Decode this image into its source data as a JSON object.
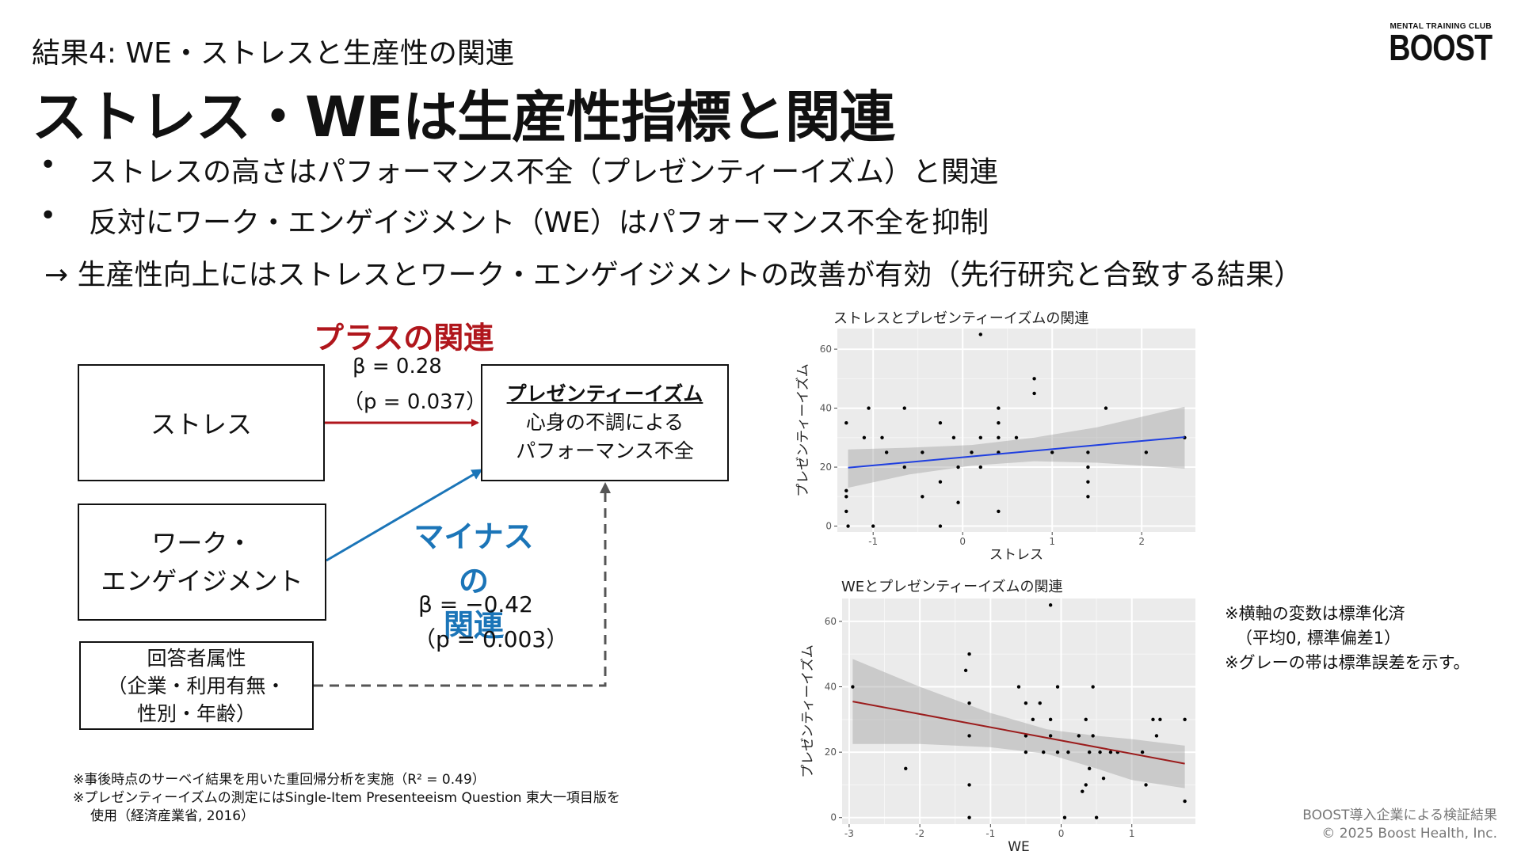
{
  "header": {
    "subtitle": "結果4: WE・ストレスと生産性の関連",
    "title": "ストレス・WEは生産性指標と関連",
    "logo_small": "MENTAL TRAINING CLUB",
    "logo_big": "BOOST"
  },
  "bullets": [
    {
      "mark": "•",
      "text": "ストレスの高さはパフォーマンス不全（プレゼンティーイズム）と関連"
    },
    {
      "mark": "•",
      "text": "反対にワーク・エンゲイジメント（WE）はパフォーマンス不全を抑制"
    }
  ],
  "conclusion": "→ 生産性向上にはストレスとワーク・エンゲイジメントの改善が有効（先行研究と合致する結果）",
  "diagram": {
    "stress_box": "ストレス",
    "we_box": [
      "ワーク・",
      "エンゲイジメント"
    ],
    "attr_box": [
      "回答者属性",
      "（企業・利用有無・",
      "性別・年齢）"
    ],
    "pres_box": {
      "title": "プレゼンティーイズム",
      "line1": "心身の不調による",
      "line2": "パフォーマンス不全"
    },
    "plus": {
      "label": "プラスの関連",
      "beta": "β = 0.28",
      "p": "（p = 0.037）"
    },
    "minus": {
      "label1": "マイナスの",
      "label2": "関連",
      "beta": "β = −0.42",
      "p": "（p = 0.003）"
    },
    "colors": {
      "plus": "#b0161c",
      "minus": "#1b75b8",
      "control": "#555555"
    }
  },
  "chart_data": [
    {
      "type": "scatter",
      "title": "ストレスとプレゼンティーイズムの関連",
      "xlabel": "ストレス",
      "ylabel": "プレゼンティーイズム",
      "xlim": [
        -1.4,
        2.6
      ],
      "ylim": [
        -2,
        67
      ],
      "xticks": [
        -1,
        0,
        1,
        2
      ],
      "yticks": [
        0,
        20,
        40,
        60
      ],
      "fit_color": "#1f3fe0",
      "fit": {
        "x": [
          -1.28,
          2.48
        ],
        "y": [
          19.8,
          30.2
        ]
      },
      "band": {
        "x": [
          -1.28,
          -0.6,
          0.1,
          0.8,
          1.5,
          2.48
        ],
        "upper": [
          26.0,
          26.6,
          27.5,
          30.0,
          33.5,
          40.5
        ],
        "lower": [
          13.0,
          17.5,
          20.5,
          22.0,
          21.5,
          19.5
        ]
      },
      "points": [
        [
          -1.3,
          35
        ],
        [
          -1.3,
          10
        ],
        [
          -1.3,
          12
        ],
        [
          -1.3,
          5
        ],
        [
          -1.28,
          0
        ],
        [
          -1.1,
          30
        ],
        [
          -1.05,
          40
        ],
        [
          -1.0,
          0
        ],
        [
          -0.9,
          30
        ],
        [
          -0.85,
          25
        ],
        [
          -0.65,
          40
        ],
        [
          -0.65,
          20
        ],
        [
          -0.45,
          25
        ],
        [
          -0.45,
          10
        ],
        [
          -0.25,
          35
        ],
        [
          -0.25,
          15
        ],
        [
          -0.25,
          0
        ],
        [
          -0.1,
          30
        ],
        [
          -0.05,
          20
        ],
        [
          -0.05,
          8
        ],
        [
          0.1,
          25
        ],
        [
          0.2,
          65
        ],
        [
          0.2,
          30
        ],
        [
          0.2,
          20
        ],
        [
          0.4,
          40
        ],
        [
          0.4,
          35
        ],
        [
          0.4,
          30
        ],
        [
          0.4,
          25
        ],
        [
          0.4,
          5
        ],
        [
          0.6,
          30
        ],
        [
          0.8,
          50
        ],
        [
          0.8,
          45
        ],
        [
          1.0,
          25
        ],
        [
          1.4,
          25
        ],
        [
          1.4,
          20
        ],
        [
          1.4,
          15
        ],
        [
          1.4,
          10
        ],
        [
          1.6,
          40
        ],
        [
          2.05,
          25
        ],
        [
          2.48,
          30
        ]
      ]
    },
    {
      "type": "scatter",
      "title": "WEとプレゼンティーイズムの関連",
      "xlabel": "WE",
      "ylabel": "プレゼンティーイズム",
      "xlim": [
        -3.1,
        1.9
      ],
      "ylim": [
        -2,
        67
      ],
      "xticks": [
        -3,
        -2,
        -1,
        0,
        1
      ],
      "yticks": [
        0,
        20,
        40,
        60
      ],
      "fit_color": "#9b1c1c",
      "fit": {
        "x": [
          -2.95,
          1.75
        ],
        "y": [
          35.5,
          16.5
        ]
      },
      "band": {
        "x": [
          -2.95,
          -2.0,
          -1.0,
          -0.2,
          0.5,
          1.0,
          1.75
        ],
        "upper": [
          48.5,
          40.0,
          32.0,
          27.0,
          25.0,
          24.0,
          22.0
        ],
        "lower": [
          22.5,
          22.5,
          21.5,
          19.5,
          15.0,
          11.5,
          9.0
        ]
      },
      "points": [
        [
          -2.95,
          40
        ],
        [
          -2.2,
          15
        ],
        [
          -1.35,
          45
        ],
        [
          -1.3,
          50
        ],
        [
          -1.3,
          35
        ],
        [
          -1.3,
          25
        ],
        [
          -1.3,
          10
        ],
        [
          -1.3,
          0
        ],
        [
          -0.6,
          40
        ],
        [
          -0.5,
          35
        ],
        [
          -0.5,
          25
        ],
        [
          -0.5,
          20
        ],
        [
          -0.4,
          30
        ],
        [
          -0.3,
          35
        ],
        [
          -0.25,
          20
        ],
        [
          -0.15,
          65
        ],
        [
          -0.15,
          30
        ],
        [
          -0.15,
          25
        ],
        [
          -0.05,
          40
        ],
        [
          -0.05,
          20
        ],
        [
          0.05,
          0
        ],
        [
          0.1,
          20
        ],
        [
          0.25,
          25
        ],
        [
          0.3,
          8
        ],
        [
          0.35,
          10
        ],
        [
          0.35,
          30
        ],
        [
          0.4,
          20
        ],
        [
          0.4,
          15
        ],
        [
          0.45,
          40
        ],
        [
          0.45,
          25
        ],
        [
          0.5,
          0
        ],
        [
          0.55,
          20
        ],
        [
          0.6,
          12
        ],
        [
          0.7,
          20
        ],
        [
          0.8,
          20
        ],
        [
          1.15,
          20
        ],
        [
          1.2,
          10
        ],
        [
          1.3,
          30
        ],
        [
          1.35,
          25
        ],
        [
          1.4,
          30
        ],
        [
          1.75,
          5
        ],
        [
          1.75,
          30
        ]
      ]
    }
  ],
  "notes_right": [
    "※横軸の変数は標準化済",
    "（平均0, 標準偏差1）",
    "※グレーの帯は標準誤差を示す。"
  ],
  "notes_bottom": [
    "※事後時点のサーベイ結果を用いた重回帰分析を実施（R² = 0.49）",
    "※プレゼンティーイズムの測定にはSingle-Item Presenteeism Question 東大一項目版を",
    "使用（経済産業省, 2016）"
  ],
  "footer": [
    "BOOST導入企業による検証結果",
    "© 2025 Boost Health, Inc."
  ]
}
